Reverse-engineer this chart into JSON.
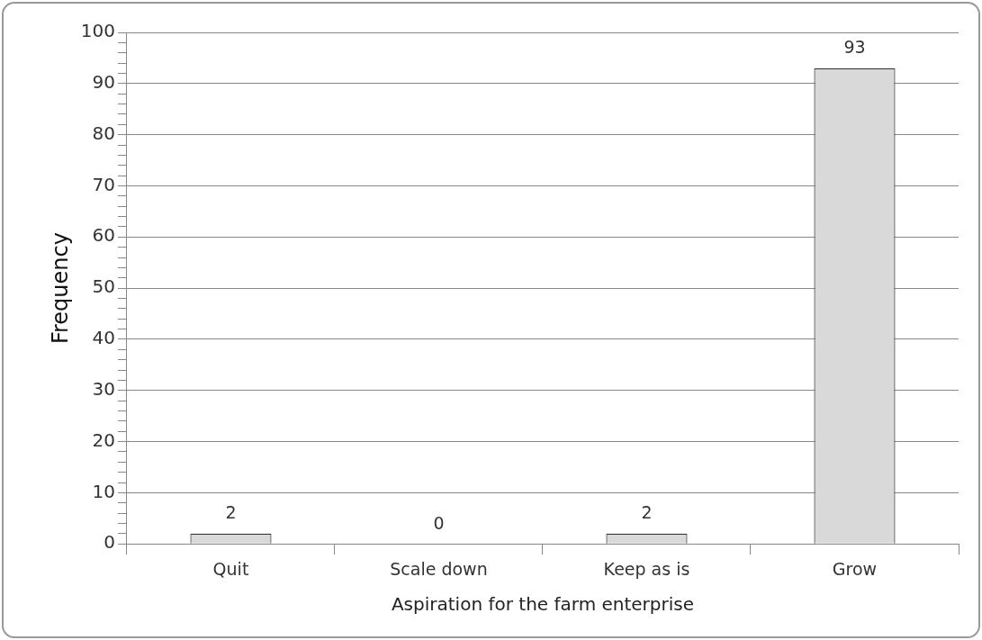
{
  "chart_data": {
    "type": "bar",
    "xlabel": "Aspiration for the farm enterprise",
    "ylabel": "Frequency",
    "categories": [
      "Quit",
      "Scale down",
      "Keep as is",
      "Grow"
    ],
    "values": [
      2,
      0,
      2,
      93
    ],
    "color": "#d9d9d9",
    "ylim": [
      0,
      100
    ],
    "yticks": [
      0,
      {
        "value": 2,
        "label": null
      },
      {
        "value": 4,
        "label": null
      },
      {
        "value": 6,
        "label": null
      },
      {
        "value": 8,
        "label": null
      },
      10,
      {
        "value": 12,
        "label": null
      },
      {
        "value": 14,
        "label": null
      },
      {
        "value": 16,
        "label": null
      },
      {
        "value": 18,
        "label": null
      },
      20,
      {
        "value": 22,
        "label": null
      },
      {
        "value": 24,
        "label": null
      },
      {
        "value": 26,
        "label": null
      },
      {
        "value": 28,
        "label": null
      },
      30,
      {
        "value": 32,
        "label": null
      },
      {
        "value": 34,
        "label": null
      },
      {
        "value": 36,
        "label": null
      },
      {
        "value": 38,
        "label": null
      },
      40,
      {
        "value": 42,
        "label": null
      },
      {
        "value": 44,
        "label": null
      },
      {
        "value": 46,
        "label": null
      },
      {
        "value": 48,
        "label": null
      },
      50,
      {
        "value": 52,
        "label": null
      },
      {
        "value": 54,
        "label": null
      },
      {
        "value": 56,
        "label": null
      },
      {
        "value": 58,
        "label": null
      },
      60,
      {
        "value": 62,
        "label": null
      },
      {
        "value": 64,
        "label": null
      },
      {
        "value": 66,
        "label": null
      },
      {
        "value": 68,
        "label": null
      },
      70,
      {
        "value": 72,
        "label": null
      },
      {
        "value": 74,
        "label": null
      },
      {
        "value": 76,
        "label": null
      },
      {
        "value": 78,
        "label": null
      },
      80,
      {
        "value": 82,
        "label": null
      },
      {
        "value": 84,
        "label": null
      },
      {
        "value": 86,
        "label": null
      },
      {
        "value": 88,
        "label": null
      },
      90,
      {
        "value": 92,
        "label": null
      },
      {
        "value": 94,
        "label": null
      },
      {
        "value": 96,
        "label": null
      },
      {
        "value": 98,
        "label": null
      },
      100
    ],
    "grid": "y",
    "data_labels": true,
    "legend": false
  }
}
